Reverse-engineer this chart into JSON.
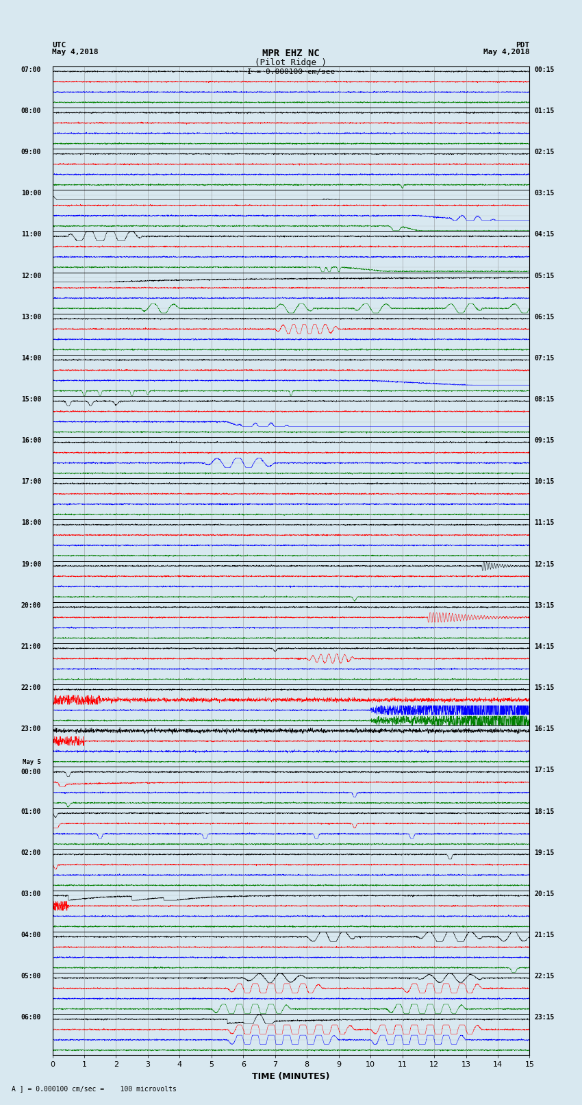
{
  "title_line1": "MPR EHZ NC",
  "title_line2": "(Pilot Ridge )",
  "scale_text": "I = 0.000100 cm/sec",
  "left_label": "UTC\nMay 4,2018",
  "right_label": "PDT\nMay 4,2018",
  "xlabel": "TIME (MINUTES)",
  "footer": "A ] = 0.000100 cm/sec =    100 microvolts",
  "left_times": [
    "07:00",
    "08:00",
    "09:00",
    "10:00",
    "11:00",
    "12:00",
    "13:00",
    "14:00",
    "15:00",
    "16:00",
    "17:00",
    "18:00",
    "19:00",
    "20:00",
    "21:00",
    "22:00",
    "23:00",
    "May 5\n00:00",
    "01:00",
    "02:00",
    "03:00",
    "04:00",
    "05:00",
    "06:00"
  ],
  "right_times": [
    "00:15",
    "01:15",
    "02:15",
    "03:15",
    "04:15",
    "05:15",
    "06:15",
    "07:15",
    "08:15",
    "09:15",
    "10:15",
    "11:15",
    "12:15",
    "13:15",
    "14:15",
    "15:15",
    "16:15",
    "17:15",
    "18:15",
    "19:15",
    "20:15",
    "21:15",
    "22:15",
    "23:15"
  ],
  "num_rows": 24,
  "traces_per_row": 4,
  "time_min": 0,
  "time_max": 15,
  "colors": [
    "black",
    "red",
    "blue",
    "green"
  ],
  "bg_color": "#d8e8f0",
  "line_color": "#888888",
  "noise_amp": 0.008,
  "seed": 42
}
